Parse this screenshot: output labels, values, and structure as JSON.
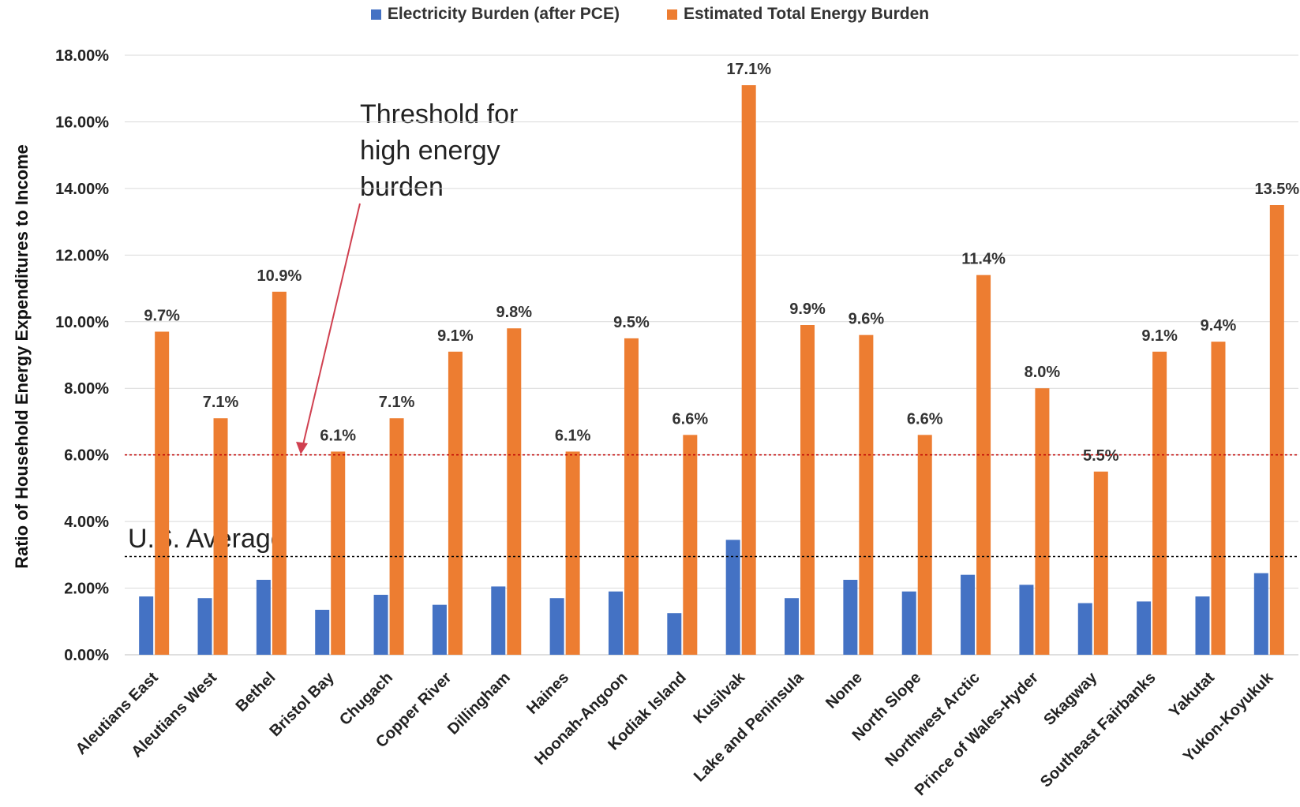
{
  "chart_data": {
    "type": "bar",
    "ylabel": "Ratio of Household Energy Expenditures to Income",
    "ylim": [
      0,
      18
    ],
    "yticks": [
      "0.00%",
      "2.00%",
      "4.00%",
      "6.00%",
      "8.00%",
      "10.00%",
      "12.00%",
      "14.00%",
      "16.00%",
      "18.00%"
    ],
    "grid": true,
    "legend_position": "top",
    "categories": [
      "Aleutians East",
      "Aleutians West",
      "Bethel",
      "Bristol Bay",
      "Chugach",
      "Copper River",
      "Dillingham",
      "Haines",
      "Hoonah-Angoon",
      "Kodiak Island",
      "Kusilvak",
      "Lake and Peninsula",
      "Nome",
      "North Slope",
      "Northwest Arctic",
      "Prince of Wales-Hyder",
      "Skagway",
      "Southeast Fairbanks",
      "Yakutat",
      "Yukon-Koyukuk"
    ],
    "series": [
      {
        "name": "Electricity Burden (after PCE)",
        "color": "#4472C4",
        "values": [
          1.75,
          1.7,
          2.25,
          1.35,
          1.8,
          1.5,
          2.05,
          1.7,
          1.9,
          1.25,
          3.45,
          1.7,
          2.25,
          1.9,
          2.4,
          2.1,
          1.55,
          1.6,
          1.75,
          2.45
        ]
      },
      {
        "name": "Estimated Total Energy Burden",
        "color": "#ED7D31",
        "values": [
          9.7,
          7.1,
          10.9,
          6.1,
          7.1,
          9.1,
          9.8,
          6.1,
          9.5,
          6.6,
          17.1,
          9.9,
          9.6,
          6.6,
          11.4,
          8.0,
          5.5,
          9.1,
          9.4,
          13.5
        ],
        "data_labels": [
          "9.7%",
          "7.1%",
          "10.9%",
          "6.1%",
          "7.1%",
          "9.1%",
          "9.8%",
          "6.1%",
          "9.5%",
          "6.6%",
          "17.1%",
          "9.9%",
          "9.6%",
          "6.6%",
          "11.4%",
          "8.0%",
          "5.5%",
          "9.1%",
          "9.4%",
          "13.5%"
        ]
      }
    ],
    "reference_lines": [
      {
        "label": "Threshold for high energy burden",
        "value": 6.0,
        "color": "#C00000",
        "style": "dotted"
      },
      {
        "label": "U.S. Average",
        "value": 2.95,
        "color": "#000000",
        "style": "dotted"
      }
    ],
    "annotations": {
      "threshold_lines": [
        "Threshold for",
        "high energy",
        "burden"
      ],
      "us_average": "U.S. Average"
    }
  }
}
